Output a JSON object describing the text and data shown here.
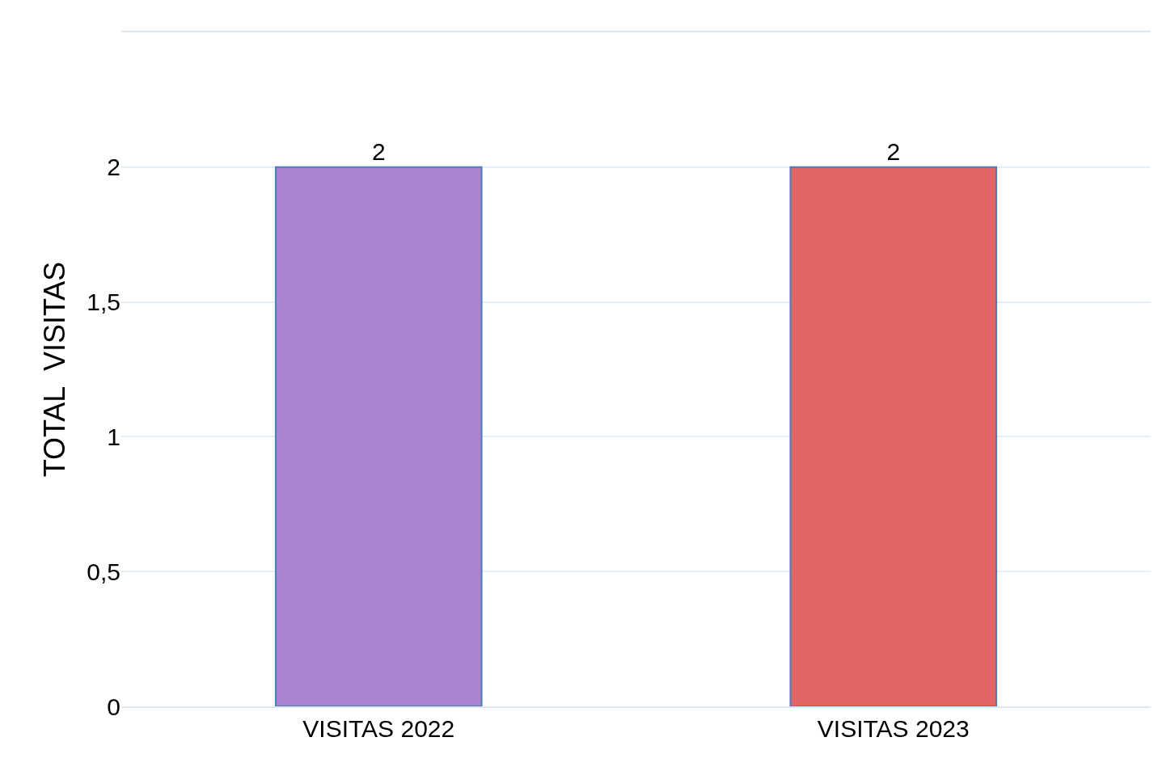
{
  "chart_data": {
    "type": "bar",
    "ylabel": "TOTAL  VISITAS",
    "categories": [
      "VISITAS 2022",
      "VISITAS 2023"
    ],
    "values": [
      2,
      2
    ],
    "colors": [
      "#ab84cf",
      "#e06666"
    ],
    "ylim": [
      0,
      2.5
    ],
    "yticks": [
      0,
      {
        "value": 0.5,
        "label": "0,5"
      },
      1,
      {
        "value": 1.5,
        "label": "1,5"
      },
      2
    ],
    "grid": "y",
    "data_labels": true
  }
}
